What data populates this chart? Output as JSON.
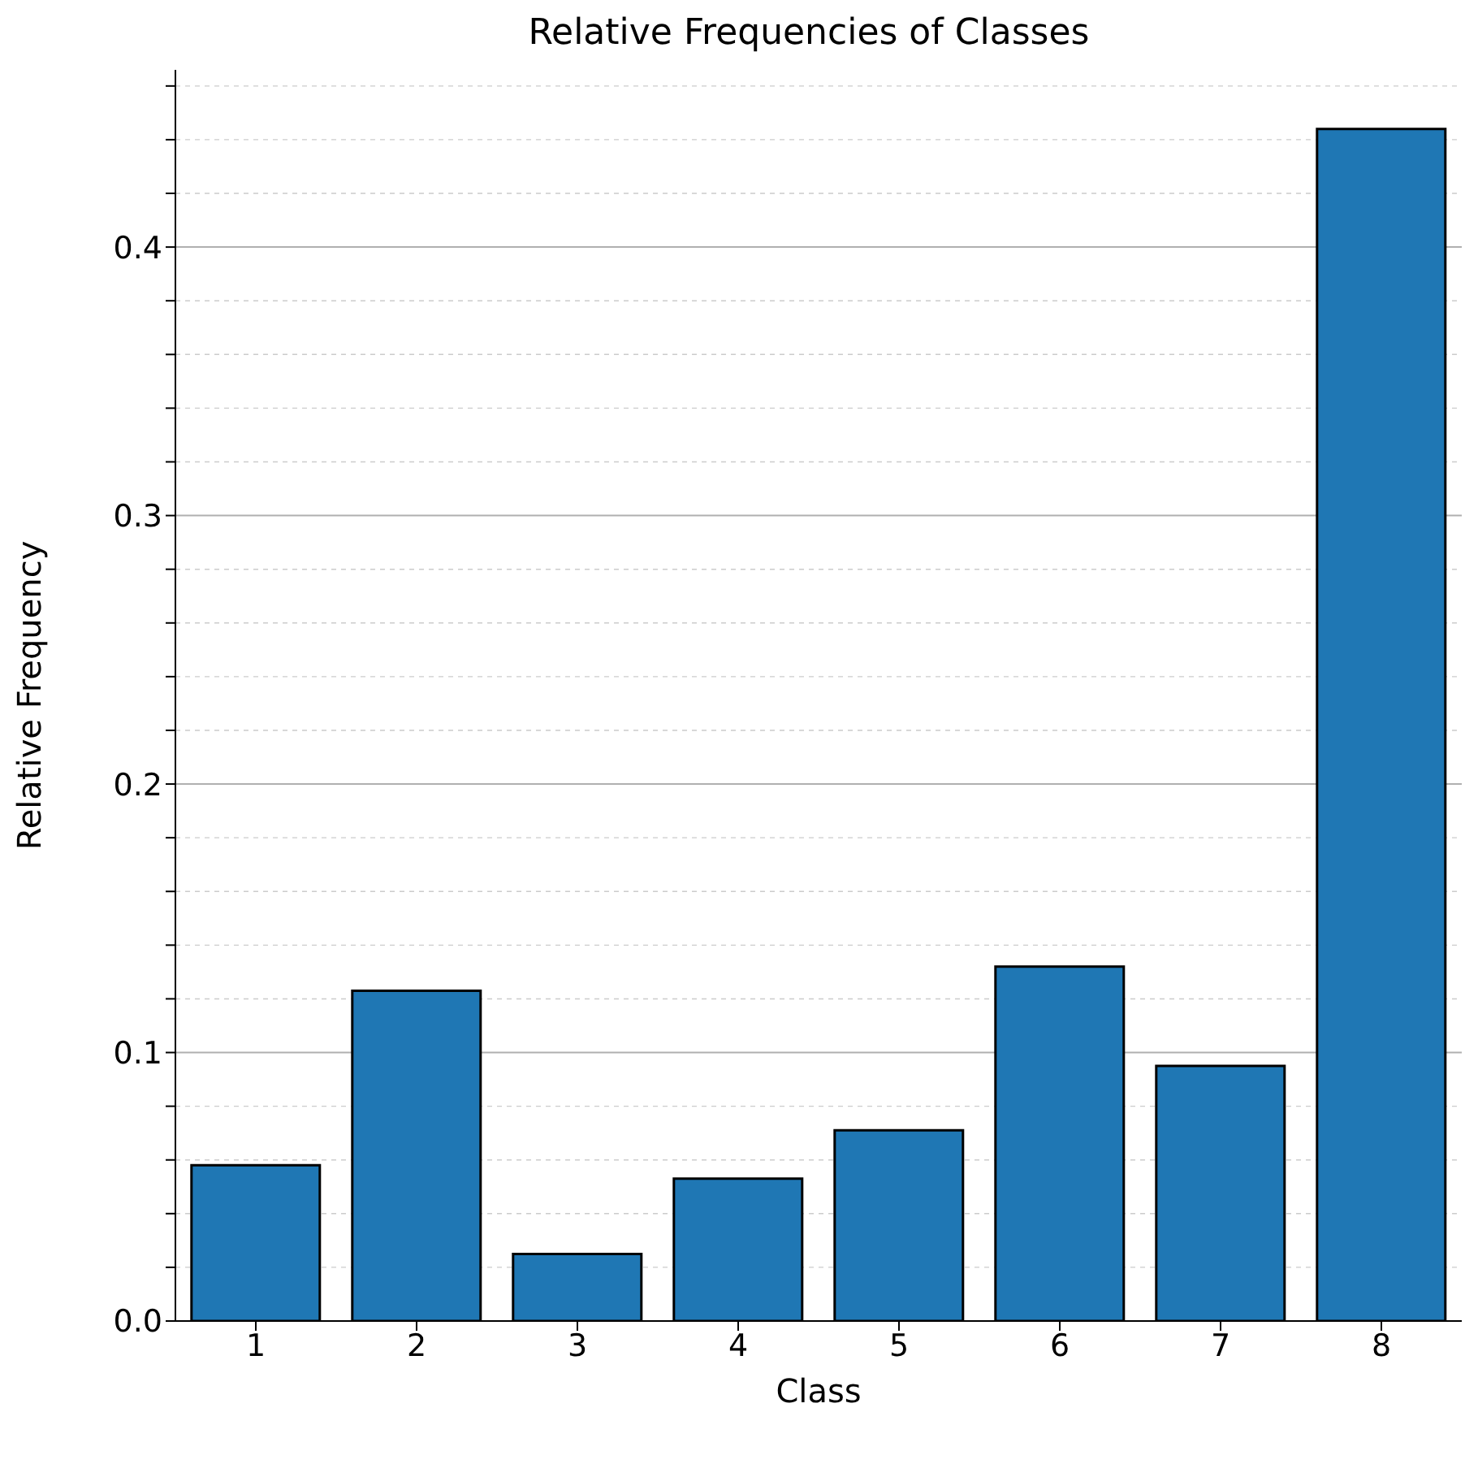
{
  "chart_data": {
    "type": "bar",
    "title": "Relative Frequencies of Classes",
    "xlabel": "Class",
    "ylabel": "Relative Frequency",
    "categories": [
      "1",
      "2",
      "3",
      "4",
      "5",
      "6",
      "7",
      "8"
    ],
    "values": [
      0.058,
      0.123,
      0.025,
      0.053,
      0.071,
      0.132,
      0.095,
      0.444
    ],
    "color": "#1f77b4",
    "ylim": [
      0,
      0.466
    ],
    "yticks": [
      {
        "value": 0,
        "label": "0.0"
      },
      {
        "value": 0.02,
        "label": null
      },
      {
        "value": 0.04,
        "label": null
      },
      {
        "value": 0.06,
        "label": null
      },
      {
        "value": 0.08,
        "label": null
      },
      0.1,
      {
        "value": 0.12,
        "label": null
      },
      {
        "value": 0.14,
        "label": null
      },
      {
        "value": 0.16,
        "label": null
      },
      {
        "value": 0.18,
        "label": null
      },
      0.2,
      {
        "value": 0.22,
        "label": null
      },
      {
        "value": 0.24,
        "label": null
      },
      {
        "value": 0.26,
        "label": null
      },
      {
        "value": 0.28,
        "label": null
      },
      0.3,
      {
        "value": 0.32,
        "label": null
      },
      {
        "value": 0.34,
        "label": null
      },
      {
        "value": 0.36,
        "label": null
      },
      {
        "value": 0.38,
        "label": null
      },
      0.4,
      {
        "value": 0.42,
        "label": null
      },
      {
        "value": 0.44,
        "label": null
      },
      {
        "value": 0.46,
        "label": null
      }
    ],
    "grid": "y"
  }
}
